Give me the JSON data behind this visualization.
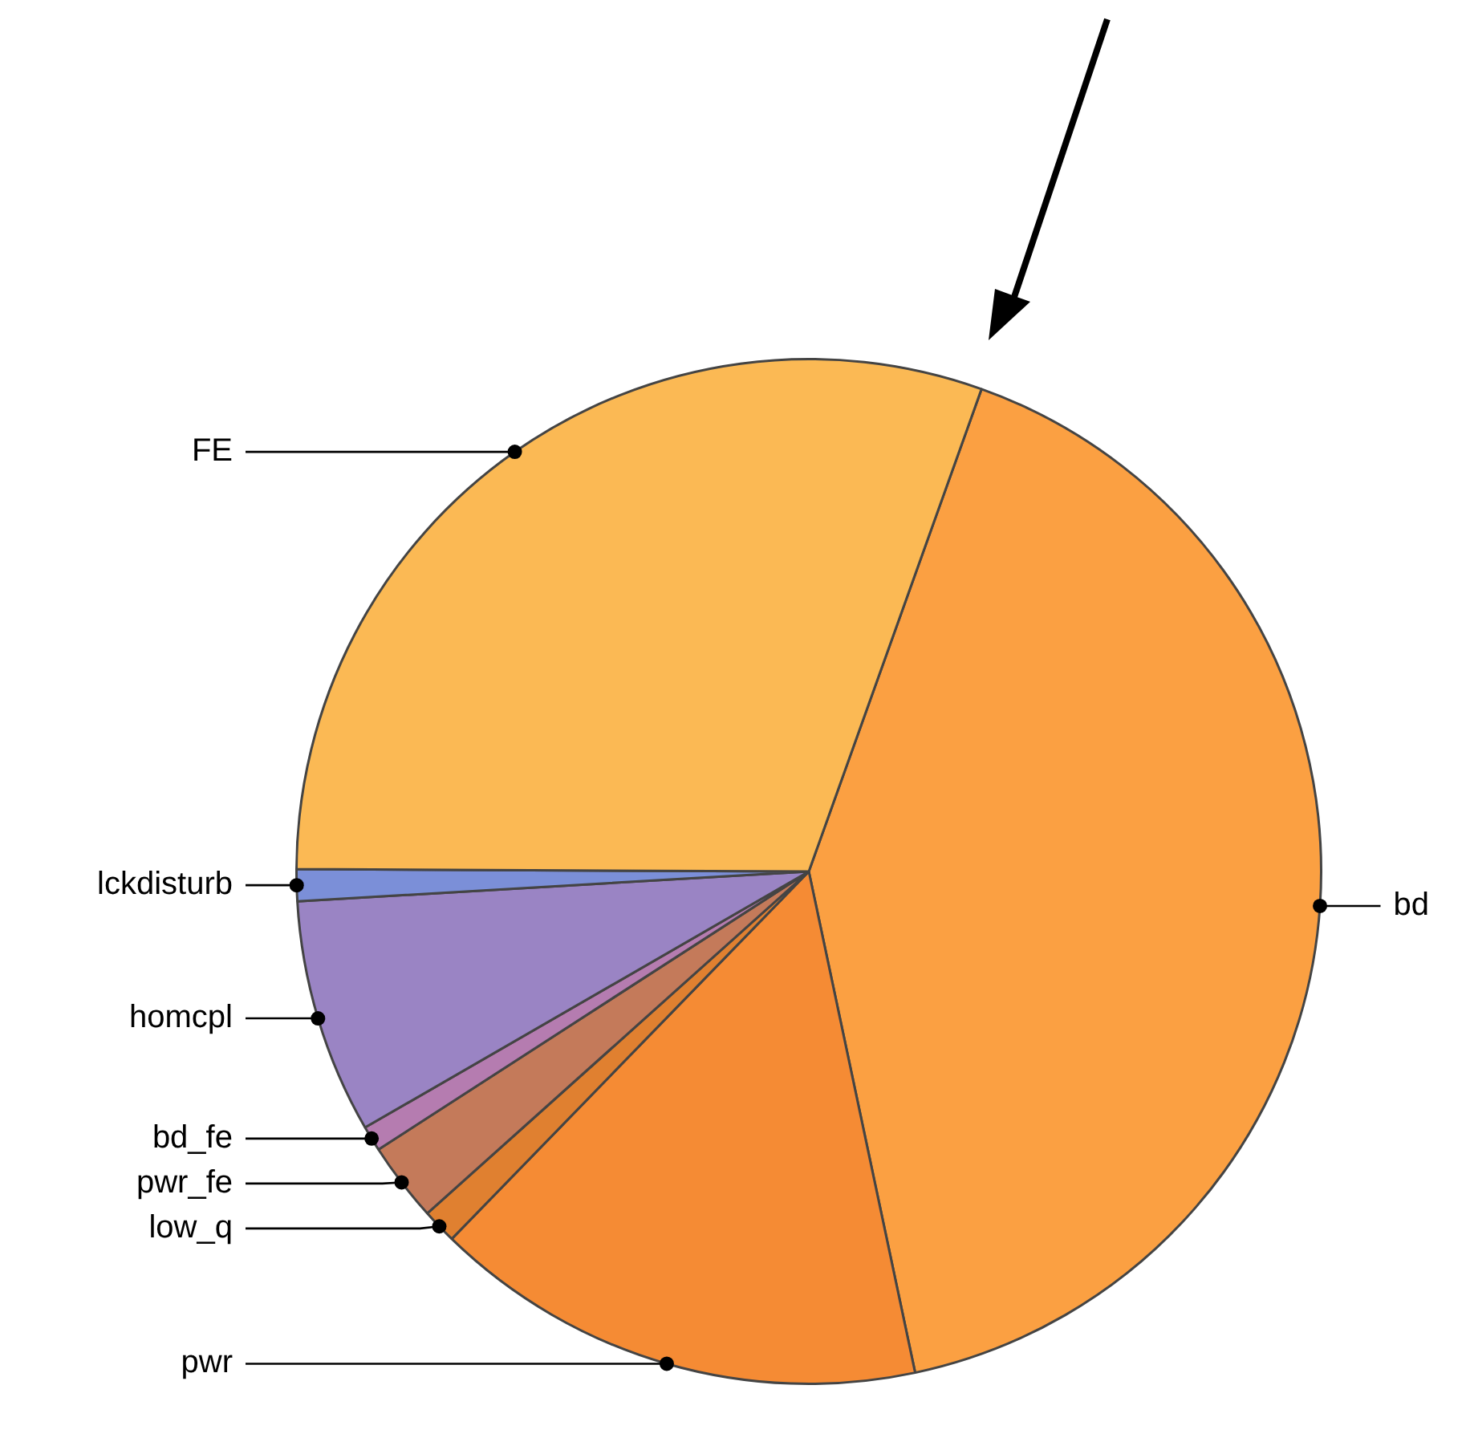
{
  "chart_data": {
    "type": "pie",
    "categories": [
      "bd",
      "pwr",
      "low_q",
      "pwr_fe",
      "bd_fe",
      "homcpl",
      "lckdisturb",
      "FE"
    ],
    "values": [
      41.2,
      15.6,
      1.1,
      2.5,
      0.8,
      7.4,
      1.0,
      30.4
    ],
    "colors": [
      "#fba042",
      "#f58b34",
      "#e08030",
      "#c47a5a",
      "#b57cb0",
      "#9a84c4",
      "#7b8fd8",
      "#fbb954"
    ],
    "legend": false
  }
}
